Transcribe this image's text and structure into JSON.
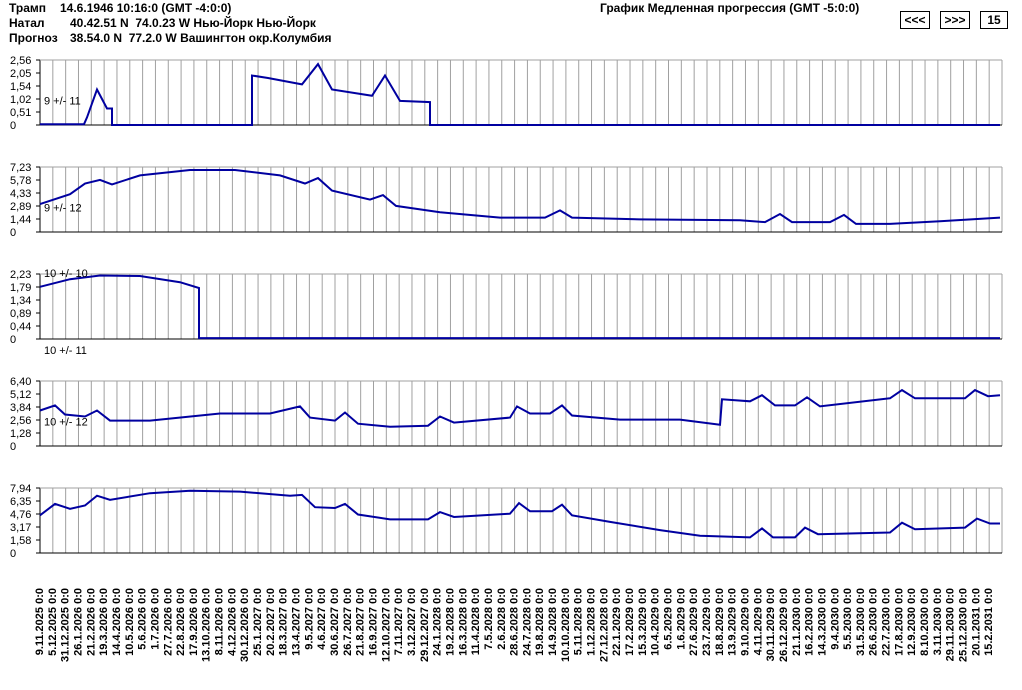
{
  "header": {
    "line1_label": "Трамп",
    "line1_value": "14.6.1946 10:16:0 (GMT -4:0:0)",
    "line2_label": "Натал",
    "line2_value": "40.42.51 N  74.0.23 W Нью-Йорк Нью-Йорк",
    "line3_label": "Прогноз",
    "line3_value": "38.54.0 N  77.2.0 W Вашингтон окр.Колумбия",
    "graph_title": "График Медленная прогрессия (GMT -5:0:0)"
  },
  "controls": {
    "prev_label": "<<<",
    "next_label": ">>>",
    "step_value": "15"
  },
  "colors": {
    "line": "#0000a0",
    "grid": "#a0a0a0",
    "frame": "#000000"
  },
  "chart_data": [
    {
      "type": "line",
      "yticks": [
        "2,56",
        "2,05",
        "1,54",
        "1,02",
        "0,51",
        "0"
      ],
      "ylim": [
        0,
        2.56
      ],
      "label_top": "",
      "label_inner": "9 +/- 11",
      "label_below": "",
      "points": [
        [
          0,
          0.03
        ],
        [
          44,
          0.03
        ],
        [
          47,
          0.3
        ],
        [
          57,
          1.4
        ],
        [
          67,
          0.65
        ],
        [
          72,
          0.65
        ],
        [
          72,
          0
        ],
        [
          212,
          0
        ],
        [
          212,
          1.95
        ],
        [
          228,
          1.85
        ],
        [
          262,
          1.6
        ],
        [
          278,
          2.4
        ],
        [
          292,
          1.4
        ],
        [
          332,
          1.15
        ],
        [
          345,
          1.95
        ],
        [
          360,
          0.95
        ],
        [
          390,
          0.9
        ],
        [
          390,
          0
        ],
        [
          960,
          0
        ]
      ]
    },
    {
      "type": "line",
      "yticks": [
        "7,23",
        "5,78",
        "4,33",
        "2,89",
        "1,44",
        "0"
      ],
      "ylim": [
        0,
        7.23
      ],
      "label_top": "",
      "label_inner": "9 +/- 12",
      "label_below": "",
      "points": [
        [
          0,
          3.1
        ],
        [
          30,
          4.2
        ],
        [
          45,
          5.4
        ],
        [
          60,
          5.8
        ],
        [
          72,
          5.3
        ],
        [
          100,
          6.3
        ],
        [
          150,
          6.9
        ],
        [
          195,
          6.9
        ],
        [
          240,
          6.3
        ],
        [
          265,
          5.4
        ],
        [
          278,
          6.0
        ],
        [
          292,
          4.6
        ],
        [
          330,
          3.6
        ],
        [
          343,
          4.1
        ],
        [
          356,
          2.9
        ],
        [
          400,
          2.2
        ],
        [
          460,
          1.6
        ],
        [
          505,
          1.6
        ],
        [
          520,
          2.4
        ],
        [
          532,
          1.6
        ],
        [
          600,
          1.4
        ],
        [
          700,
          1.3
        ],
        [
          725,
          1.1
        ],
        [
          740,
          2.0
        ],
        [
          752,
          1.1
        ],
        [
          790,
          1.1
        ],
        [
          804,
          1.9
        ],
        [
          816,
          0.9
        ],
        [
          850,
          0.9
        ],
        [
          900,
          1.2
        ],
        [
          960,
          1.6
        ]
      ]
    },
    {
      "type": "line",
      "yticks": [
        "2,23",
        "1,79",
        "1,34",
        "0,89",
        "0,44",
        "0"
      ],
      "ylim": [
        0,
        2.23
      ],
      "label_top": "10 +/- 10",
      "label_inner": "",
      "label_below": "10 +/- 11",
      "points": [
        [
          0,
          1.79
        ],
        [
          30,
          2.05
        ],
        [
          60,
          2.18
        ],
        [
          100,
          2.16
        ],
        [
          140,
          1.95
        ],
        [
          159,
          1.75
        ],
        [
          159,
          0.03
        ],
        [
          960,
          0.03
        ]
      ]
    },
    {
      "type": "line",
      "yticks": [
        "6,40",
        "5,12",
        "3,84",
        "2,56",
        "1,28",
        "0"
      ],
      "ylim": [
        0,
        6.4
      ],
      "label_top": "",
      "label_inner": "10 +/- 12",
      "label_below": "",
      "points": [
        [
          0,
          3.5
        ],
        [
          15,
          4.0
        ],
        [
          25,
          3.1
        ],
        [
          45,
          2.9
        ],
        [
          57,
          3.5
        ],
        [
          70,
          2.5
        ],
        [
          110,
          2.5
        ],
        [
          180,
          3.2
        ],
        [
          230,
          3.2
        ],
        [
          260,
          3.9
        ],
        [
          270,
          2.8
        ],
        [
          295,
          2.5
        ],
        [
          305,
          3.3
        ],
        [
          318,
          2.2
        ],
        [
          350,
          1.9
        ],
        [
          388,
          2.0
        ],
        [
          400,
          2.9
        ],
        [
          414,
          2.3
        ],
        [
          470,
          2.8
        ],
        [
          477,
          3.9
        ],
        [
          490,
          3.2
        ],
        [
          510,
          3.2
        ],
        [
          522,
          4.0
        ],
        [
          532,
          3.0
        ],
        [
          580,
          2.6
        ],
        [
          640,
          2.6
        ],
        [
          680,
          2.1
        ],
        [
          682,
          4.6
        ],
        [
          710,
          4.4
        ],
        [
          722,
          5.0
        ],
        [
          735,
          4.0
        ],
        [
          755,
          4.0
        ],
        [
          767,
          4.8
        ],
        [
          780,
          3.9
        ],
        [
          850,
          4.7
        ],
        [
          862,
          5.5
        ],
        [
          875,
          4.7
        ],
        [
          925,
          4.7
        ],
        [
          935,
          5.5
        ],
        [
          948,
          4.9
        ],
        [
          960,
          5.0
        ]
      ]
    },
    {
      "type": "line",
      "yticks": [
        "7,94",
        "6,35",
        "4,76",
        "3,17",
        "1,58",
        "0"
      ],
      "ylim": [
        0,
        7.94
      ],
      "label_top": "",
      "label_inner": "",
      "label_below": "",
      "points": [
        [
          0,
          4.6
        ],
        [
          15,
          6.0
        ],
        [
          30,
          5.4
        ],
        [
          45,
          5.8
        ],
        [
          57,
          7.0
        ],
        [
          70,
          6.5
        ],
        [
          110,
          7.3
        ],
        [
          150,
          7.6
        ],
        [
          200,
          7.5
        ],
        [
          250,
          7.0
        ],
        [
          262,
          7.1
        ],
        [
          275,
          5.6
        ],
        [
          295,
          5.5
        ],
        [
          305,
          6.0
        ],
        [
          318,
          4.7
        ],
        [
          350,
          4.1
        ],
        [
          388,
          4.1
        ],
        [
          400,
          5.0
        ],
        [
          414,
          4.4
        ],
        [
          470,
          4.8
        ],
        [
          479,
          6.1
        ],
        [
          490,
          5.1
        ],
        [
          512,
          5.1
        ],
        [
          522,
          5.9
        ],
        [
          532,
          4.6
        ],
        [
          570,
          3.8
        ],
        [
          620,
          2.8
        ],
        [
          660,
          2.1
        ],
        [
          710,
          1.9
        ],
        [
          722,
          3.0
        ],
        [
          733,
          1.9
        ],
        [
          755,
          1.9
        ],
        [
          765,
          3.1
        ],
        [
          778,
          2.3
        ],
        [
          850,
          2.5
        ],
        [
          862,
          3.7
        ],
        [
          875,
          2.9
        ],
        [
          925,
          3.1
        ],
        [
          937,
          4.2
        ],
        [
          950,
          3.6
        ],
        [
          960,
          3.6
        ]
      ]
    }
  ],
  "dates": [
    "9.11.2025 0:0",
    "5.12.2025 0:0",
    "31.12.2025 0:0",
    "26.1.2026 0:0",
    "21.2.2026 0:0",
    "19.3.2026 0:0",
    "14.4.2026 0:0",
    "10.5.2026 0:0",
    "5.6.2026 0:0",
    "1.7.2026 0:0",
    "27.7.2026 0:0",
    "22.8.2026 0:0",
    "17.9.2026 0:0",
    "13.10.2026 0:0",
    "8.11.2026 0:0",
    "4.12.2026 0:0",
    "30.12.2026 0:0",
    "25.1.2027 0:0",
    "20.2.2027 0:0",
    "18.3.2027 0:0",
    "13.4.2027 0:0",
    "9.5.2027 0:0",
    "4.6.2027 0:0",
    "30.6.2027 0:0",
    "26.7.2027 0:0",
    "21.8.2027 0:0",
    "16.9.2027 0:0",
    "12.10.2027 0:0",
    "7.11.2027 0:0",
    "3.12.2027 0:0",
    "29.12.2027 0:0",
    "24.1.2028 0:0",
    "19.2.2028 0:0",
    "16.3.2028 0:0",
    "11.4.2028 0:0",
    "7.5.2028 0:0",
    "2.6.2028 0:0",
    "28.6.2028 0:0",
    "24.7.2028 0:0",
    "19.8.2028 0:0",
    "14.9.2028 0:0",
    "10.10.2028 0:0",
    "5.11.2028 0:0",
    "1.12.2028 0:0",
    "27.12.2028 0:0",
    "22.1.2029 0:0",
    "17.2.2029 0:0",
    "15.3.2029 0:0",
    "10.4.2029 0:0",
    "6.5.2029 0:0",
    "1.6.2029 0:0",
    "27.6.2029 0:0",
    "23.7.2029 0:0",
    "18.8.2029 0:0",
    "13.9.2029 0:0",
    "9.10.2029 0:0",
    "4.11.2029 0:0",
    "30.11.2029 0:0",
    "26.12.2029 0:0",
    "21.1.2030 0:0",
    "16.2.2030 0:0",
    "14.3.2030 0:0",
    "9.4.2030 0:0",
    "5.5.2030 0:0",
    "31.5.2030 0:0",
    "26.6.2030 0:0",
    "22.7.2030 0:0",
    "17.8.2030 0:0",
    "12.9.2030 0:0",
    "8.10.2030 0:0",
    "3.11.2030 0:0",
    "29.11.2030 0:0",
    "25.12.2030 0:0",
    "20.1.2031 0:0",
    "15.2.2031 0:0"
  ]
}
